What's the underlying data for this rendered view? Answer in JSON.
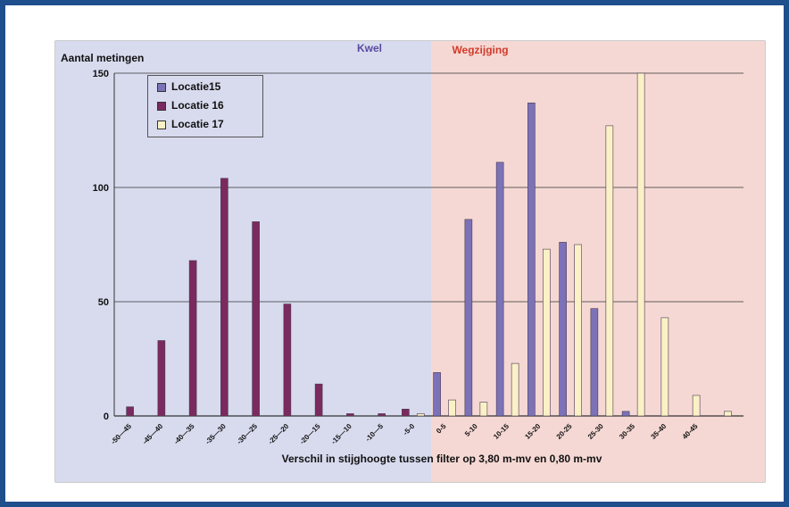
{
  "chart_data": {
    "type": "bar",
    "ylabel": "Aantal metingen",
    "xlabel": "Verschil in stijghoogte tussen filter op 3,80 m-mv en 0,80 m-mv",
    "regions": [
      {
        "label": "Kwel",
        "color": "#d8dbee",
        "label_color": "#5a4aa0"
      },
      {
        "label": "Wegzijging",
        "color": "#f5d8d4",
        "label_color": "#d23a2a"
      }
    ],
    "ylim": [
      0,
      150
    ],
    "yticks": [
      "0",
      "50",
      "100",
      "150"
    ],
    "categories": [
      "-50—45",
      "-45—40",
      "-40—35",
      "-35—30",
      "-30—25",
      "-25—20",
      "-20—15",
      "-15—10",
      "-10—5",
      "-5-0",
      "0-5",
      "5-10",
      "10-15",
      "15-20",
      "20-25",
      "25-30",
      "30-35",
      "35-40",
      "40-45",
      ""
    ],
    "series": [
      {
        "name": "Locatie15",
        "color": "#7b72b8",
        "values": [
          0,
          0,
          0,
          0,
          0,
          0,
          0,
          0,
          0,
          0,
          19,
          86,
          111,
          137,
          76,
          47,
          2,
          0,
          0,
          0
        ]
      },
      {
        "name": "Locatie 16",
        "color": "#7a2a5e",
        "values": [
          4,
          33,
          68,
          104,
          85,
          49,
          14,
          1,
          1,
          3,
          0,
          0,
          0,
          0,
          0,
          0,
          0,
          0,
          0,
          0
        ]
      },
      {
        "name": "Locatie 17",
        "color": "#fbf1c6",
        "values": [
          0,
          0,
          0,
          0,
          0,
          0,
          0,
          0,
          0,
          1,
          7,
          6,
          23,
          73,
          75,
          127,
          150,
          43,
          9,
          2
        ]
      }
    ],
    "legend_position": "top-left",
    "grid": true
  }
}
